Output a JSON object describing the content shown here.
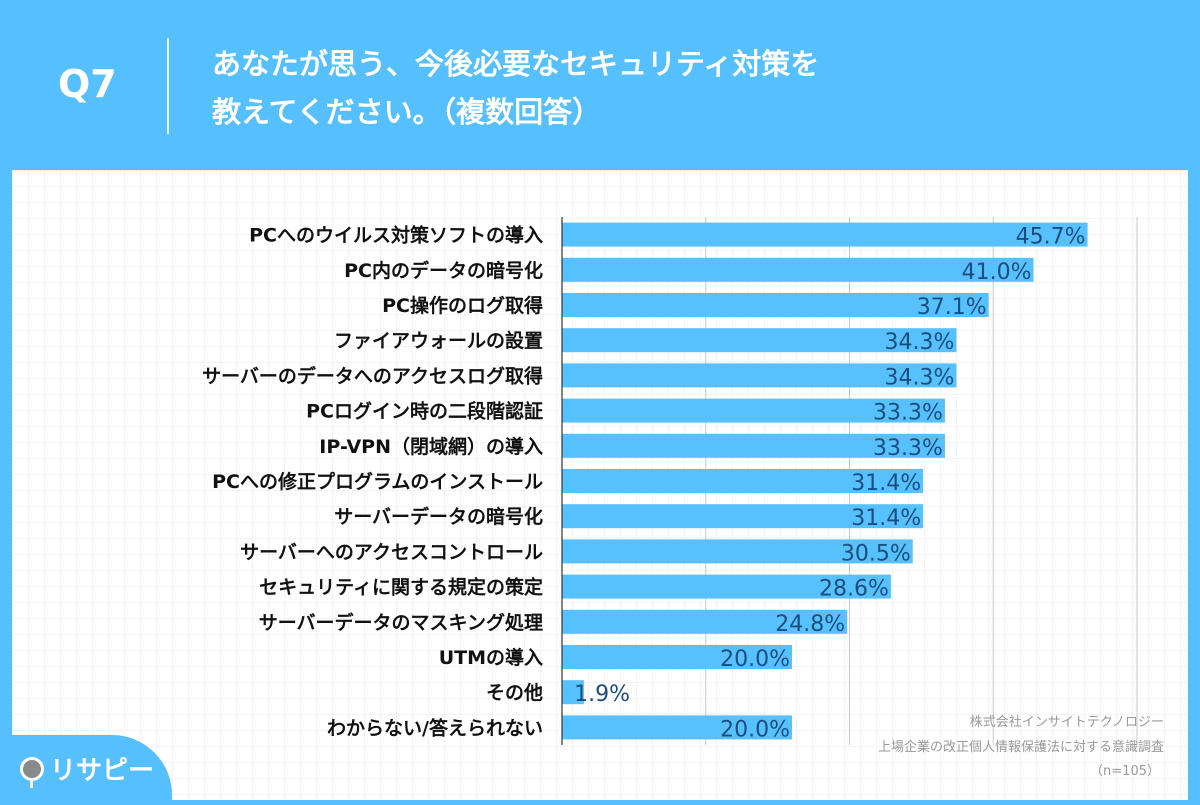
{
  "header": {
    "question": "Q7",
    "title_line1": "あなたが思う、今後必要なセキュリティ対策を",
    "title_line2": "教えてください。（複数回答）"
  },
  "logo": "リサピー",
  "source": {
    "company": "株式会社インサイトテクノロジー",
    "survey": "上場企業の改正個人情報保護法に対する意識調査",
    "n": "（n=105）"
  },
  "colors": {
    "background": "#56bffd",
    "bar": "#56c1fe",
    "value_text": "#1b4e7c"
  },
  "chart_data": {
    "type": "bar",
    "orientation": "horizontal",
    "xlim": [
      0,
      50
    ],
    "grid": true,
    "categories": [
      "PCへのウイルス対策ソフトの導入",
      "PC内のデータの暗号化",
      "PC操作のログ取得",
      "ファイアウォールの設置",
      "サーバーのデータへのアクセスログ取得",
      "PCログイン時の二段階認証",
      "IP-VPN（閉域網）の導入",
      "PCへの修正プログラムのインストール",
      "サーバーデータの暗号化",
      "サーバーへのアクセスコントロール",
      "セキュリティに関する規定の策定",
      "サーバーデータのマスキング処理",
      "UTMの導入",
      "その他",
      "わからない/答えられない"
    ],
    "values": [
      45.7,
      41.0,
      37.1,
      34.3,
      34.3,
      33.3,
      33.3,
      31.4,
      31.4,
      30.5,
      28.6,
      24.8,
      20.0,
      1.9,
      20.0
    ],
    "labels": [
      "45.7%",
      "41.0%",
      "37.1%",
      "34.3%",
      "34.3%",
      "33.3%",
      "33.3%",
      "31.4%",
      "31.4%",
      "30.5%",
      "28.6%",
      "24.8%",
      "20.0%",
      "1.9%",
      "20.0%"
    ]
  }
}
